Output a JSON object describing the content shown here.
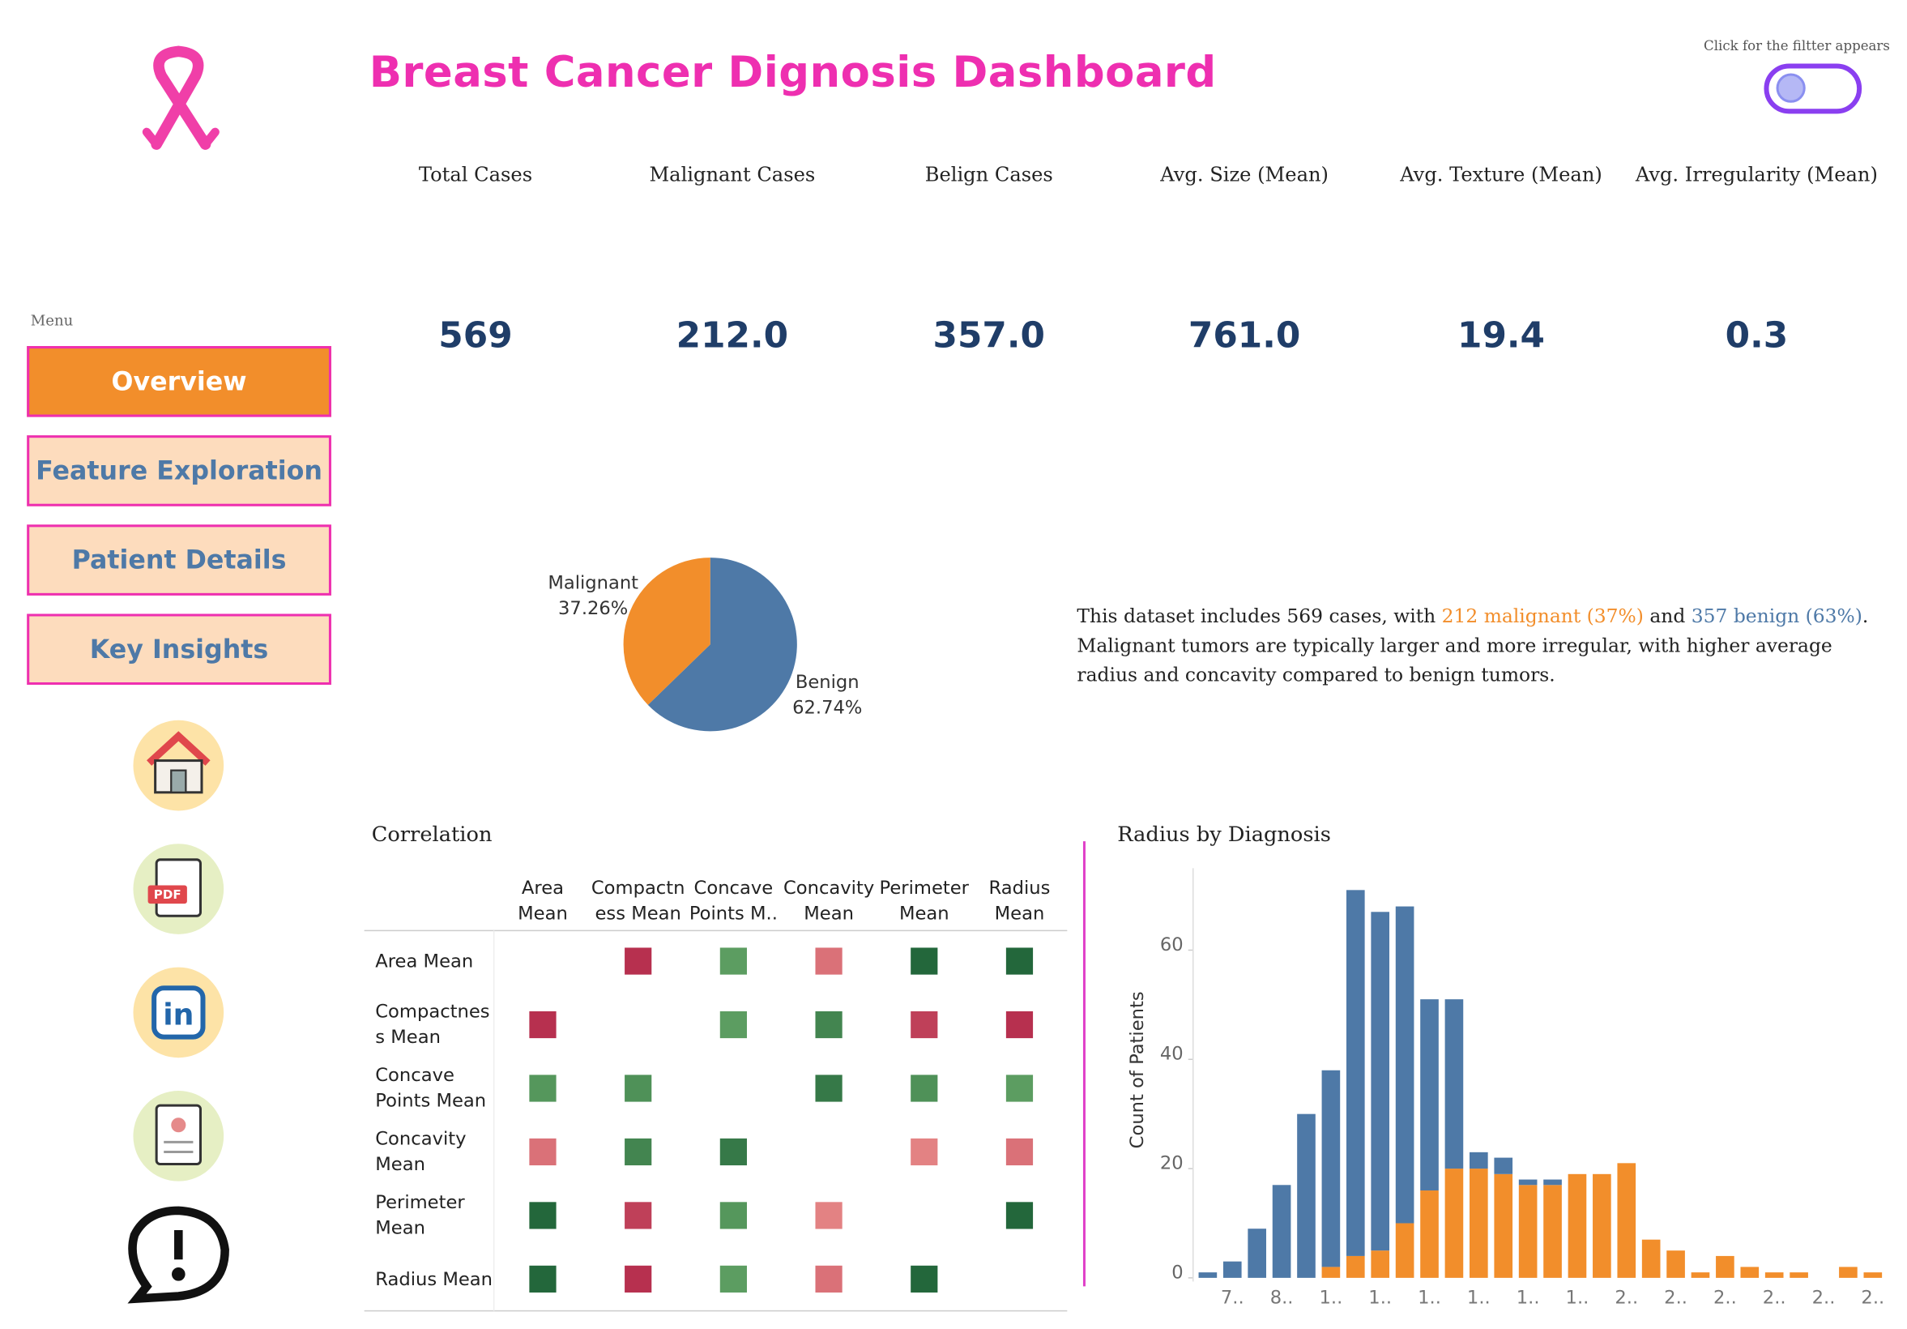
{
  "header": {
    "title": "Breast Cancer Dignosis Dashboard",
    "filter_hint": "Click for the filtter appears"
  },
  "kpis": [
    {
      "label": "Total Cases",
      "value": "569"
    },
    {
      "label": "Malignant Cases",
      "value": "212.0"
    },
    {
      "label": "Belign Cases",
      "value": "357.0"
    },
    {
      "label": "Avg. Size (Mean)",
      "value": "761.0"
    },
    {
      "label": "Avg. Texture (Mean)",
      "value": "19.4"
    },
    {
      "label": "Avg. Irregularity (Mean)",
      "value": "0.3"
    }
  ],
  "menu": {
    "label": "Menu",
    "items": [
      "Overview",
      "Feature Exploration",
      "Patient Details",
      "Key Insights"
    ],
    "active": 0
  },
  "summary": {
    "segments": [
      "This dataset includes 569 cases, with ",
      "212 malignant (37%)",
      " and ",
      "357 benign (63%)",
      ". Malignant tumors are typically larger and more irregular, with higher average radius and concavity compared to benign tumors."
    ]
  },
  "chart_data": [
    {
      "type": "pie",
      "categories": [
        "Benign",
        "Malignant"
      ],
      "values": [
        62.74,
        37.26
      ],
      "value_labels": [
        "62.74%",
        "37.26%"
      ],
      "colors": [
        "#4e79a7",
        "#f28e2b"
      ]
    },
    {
      "type": "heatmap",
      "title": "Correlation",
      "x_categories": [
        "Area Mean",
        "Compactness Mean",
        "Concave Points M..",
        "Concavity Mean",
        "Perimeter Mean",
        "Radius Mean"
      ],
      "y_categories": [
        "Area Mean",
        "Compactness Mean",
        "Concave Points Mean",
        "Concavity Mean",
        "Perimeter Mean",
        "Radius Mean"
      ],
      "values": [
        [
          null,
          -0.8,
          0.5,
          -0.4,
          0.95,
          0.95
        ],
        [
          -0.8,
          null,
          0.5,
          0.7,
          -0.7,
          -0.8
        ],
        [
          0.55,
          0.6,
          null,
          0.8,
          0.6,
          0.5
        ],
        [
          -0.4,
          0.7,
          0.8,
          null,
          -0.3,
          -0.4
        ],
        [
          0.95,
          -0.7,
          0.55,
          -0.3,
          null,
          0.95
        ],
        [
          0.95,
          -0.8,
          0.5,
          -0.4,
          0.95,
          null
        ]
      ],
      "color_scale": {
        "negative": [
          "#fdb3a2",
          "#a50f3a"
        ],
        "positive": [
          "#9ad88a",
          "#1d6137"
        ]
      }
    },
    {
      "type": "bar",
      "stacked": true,
      "title": "Radius by Diagnosis",
      "y_label": "Count of Patients",
      "categories": [
        null,
        "7..",
        null,
        "8..",
        null,
        "1..",
        null,
        "1..",
        null,
        "1..",
        null,
        "1..",
        null,
        "1..",
        null,
        "1..",
        null,
        "2..",
        null,
        "2..",
        null,
        "2..",
        null,
        "2..",
        null,
        "2..",
        null,
        "2.."
      ],
      "series": [
        {
          "color": "#f28e2b",
          "values": [
            0,
            0,
            0,
            0,
            0,
            2,
            4,
            5,
            10,
            16,
            20,
            20,
            19,
            17,
            17,
            19,
            19,
            21,
            7,
            5,
            1,
            4,
            2,
            1,
            1,
            0,
            2,
            1
          ]
        },
        {
          "color": "#4e79a7",
          "values": [
            1,
            3,
            9,
            17,
            30,
            36,
            67,
            62,
            58,
            35,
            31,
            3,
            3,
            1,
            1,
            0,
            0,
            0,
            0,
            0,
            0,
            0,
            0,
            0,
            0,
            0,
            0,
            0
          ]
        }
      ],
      "ylim": [
        0,
        75
      ],
      "yticks": [
        0,
        20,
        40,
        60
      ]
    }
  ]
}
